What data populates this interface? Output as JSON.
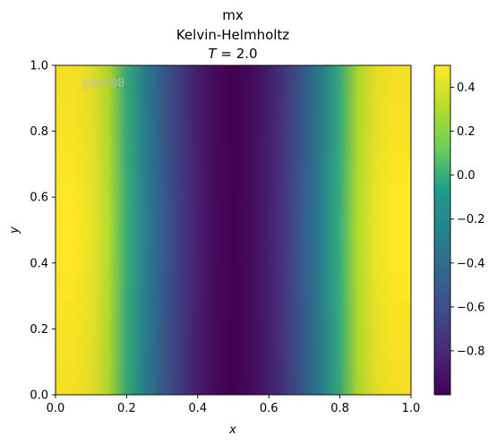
{
  "chart_data": {
    "type": "heatmap",
    "title_lines": [
      "mx",
      "Kelvin-Helmholtz"
    ],
    "title_math": {
      "symbol": "T",
      "rest": " = 2.0"
    },
    "xlabel": "x",
    "ylabel": "y",
    "xlim": [
      0.0,
      1.0
    ],
    "ylim": [
      0.0,
      1.0
    ],
    "x_ticks": [
      0.0,
      0.2,
      0.4,
      0.6,
      0.8,
      1.0
    ],
    "x_tick_labels": [
      "0.0",
      "0.2",
      "0.4",
      "0.6",
      "0.8",
      "1.0"
    ],
    "y_ticks": [
      0.0,
      0.2,
      0.4,
      0.6,
      0.8,
      1.0
    ],
    "y_tick_labels": [
      "0.0",
      "0.2",
      "0.4",
      "0.6",
      "0.8",
      "1.0"
    ],
    "colormap": "viridis",
    "colorbar": {
      "vmin": -1.0,
      "vmax": 0.5,
      "ticks": [
        0.4,
        0.2,
        0.0,
        -0.2,
        -0.4,
        -0.6,
        -0.8
      ],
      "tick_labels": [
        "0.4",
        "0.2",
        "0.0",
        "−0.2",
        "−0.4",
        "−0.6",
        "−0.8"
      ]
    },
    "field_profile": {
      "x": [
        0.0,
        0.05,
        0.1,
        0.15,
        0.2,
        0.25,
        0.3,
        0.35,
        0.4,
        0.45,
        0.5,
        0.55,
        0.6,
        0.65,
        0.7,
        0.75,
        0.8,
        0.85,
        0.9,
        0.95,
        1.0
      ],
      "mx": [
        0.5,
        0.5,
        0.45,
        0.3,
        0.0,
        -0.25,
        -0.5,
        -0.7,
        -0.85,
        -0.95,
        -1.0,
        -0.95,
        -0.85,
        -0.7,
        -0.5,
        -0.25,
        0.0,
        0.3,
        0.45,
        0.5,
        0.5
      ]
    },
    "watermark": "@ddf00"
  }
}
